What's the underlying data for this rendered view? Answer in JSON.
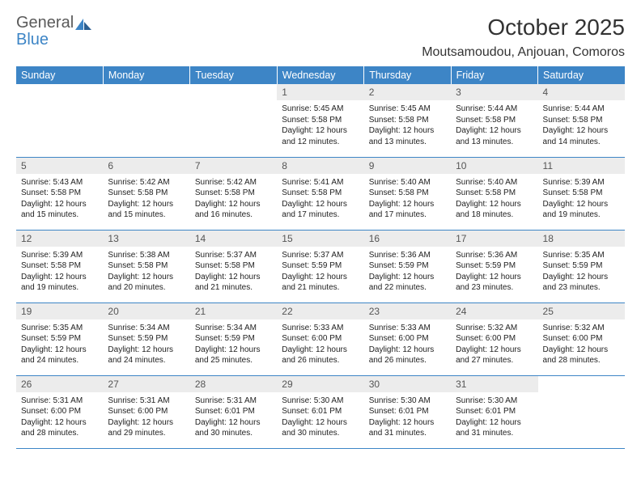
{
  "brand": {
    "name_part1": "General",
    "name_part2": "Blue",
    "color_gray": "#5a5a5a",
    "color_blue": "#3d85c6"
  },
  "title": "October 2025",
  "location": "Moutsamoudou, Anjouan, Comoros",
  "header_bg": "#3d85c6",
  "header_fg": "#ffffff",
  "daynum_bg": "#ececec",
  "border_color": "#3d85c6",
  "background_color": "#ffffff",
  "font_family": "Arial",
  "title_fontsize": 28,
  "location_fontsize": 16,
  "header_fontsize": 12.5,
  "daynum_fontsize": 12,
  "detail_fontsize": 10,
  "day_headers": [
    "Sunday",
    "Monday",
    "Tuesday",
    "Wednesday",
    "Thursday",
    "Friday",
    "Saturday"
  ],
  "weeks": [
    [
      null,
      null,
      null,
      {
        "n": "1",
        "sunrise": "5:45 AM",
        "sunset": "5:58 PM",
        "daylight": "12 hours and 12 minutes."
      },
      {
        "n": "2",
        "sunrise": "5:45 AM",
        "sunset": "5:58 PM",
        "daylight": "12 hours and 13 minutes."
      },
      {
        "n": "3",
        "sunrise": "5:44 AM",
        "sunset": "5:58 PM",
        "daylight": "12 hours and 13 minutes."
      },
      {
        "n": "4",
        "sunrise": "5:44 AM",
        "sunset": "5:58 PM",
        "daylight": "12 hours and 14 minutes."
      }
    ],
    [
      {
        "n": "5",
        "sunrise": "5:43 AM",
        "sunset": "5:58 PM",
        "daylight": "12 hours and 15 minutes."
      },
      {
        "n": "6",
        "sunrise": "5:42 AM",
        "sunset": "5:58 PM",
        "daylight": "12 hours and 15 minutes."
      },
      {
        "n": "7",
        "sunrise": "5:42 AM",
        "sunset": "5:58 PM",
        "daylight": "12 hours and 16 minutes."
      },
      {
        "n": "8",
        "sunrise": "5:41 AM",
        "sunset": "5:58 PM",
        "daylight": "12 hours and 17 minutes."
      },
      {
        "n": "9",
        "sunrise": "5:40 AM",
        "sunset": "5:58 PM",
        "daylight": "12 hours and 17 minutes."
      },
      {
        "n": "10",
        "sunrise": "5:40 AM",
        "sunset": "5:58 PM",
        "daylight": "12 hours and 18 minutes."
      },
      {
        "n": "11",
        "sunrise": "5:39 AM",
        "sunset": "5:58 PM",
        "daylight": "12 hours and 19 minutes."
      }
    ],
    [
      {
        "n": "12",
        "sunrise": "5:39 AM",
        "sunset": "5:58 PM",
        "daylight": "12 hours and 19 minutes."
      },
      {
        "n": "13",
        "sunrise": "5:38 AM",
        "sunset": "5:58 PM",
        "daylight": "12 hours and 20 minutes."
      },
      {
        "n": "14",
        "sunrise": "5:37 AM",
        "sunset": "5:58 PM",
        "daylight": "12 hours and 21 minutes."
      },
      {
        "n": "15",
        "sunrise": "5:37 AM",
        "sunset": "5:59 PM",
        "daylight": "12 hours and 21 minutes."
      },
      {
        "n": "16",
        "sunrise": "5:36 AM",
        "sunset": "5:59 PM",
        "daylight": "12 hours and 22 minutes."
      },
      {
        "n": "17",
        "sunrise": "5:36 AM",
        "sunset": "5:59 PM",
        "daylight": "12 hours and 23 minutes."
      },
      {
        "n": "18",
        "sunrise": "5:35 AM",
        "sunset": "5:59 PM",
        "daylight": "12 hours and 23 minutes."
      }
    ],
    [
      {
        "n": "19",
        "sunrise": "5:35 AM",
        "sunset": "5:59 PM",
        "daylight": "12 hours and 24 minutes."
      },
      {
        "n": "20",
        "sunrise": "5:34 AM",
        "sunset": "5:59 PM",
        "daylight": "12 hours and 24 minutes."
      },
      {
        "n": "21",
        "sunrise": "5:34 AM",
        "sunset": "5:59 PM",
        "daylight": "12 hours and 25 minutes."
      },
      {
        "n": "22",
        "sunrise": "5:33 AM",
        "sunset": "6:00 PM",
        "daylight": "12 hours and 26 minutes."
      },
      {
        "n": "23",
        "sunrise": "5:33 AM",
        "sunset": "6:00 PM",
        "daylight": "12 hours and 26 minutes."
      },
      {
        "n": "24",
        "sunrise": "5:32 AM",
        "sunset": "6:00 PM",
        "daylight": "12 hours and 27 minutes."
      },
      {
        "n": "25",
        "sunrise": "5:32 AM",
        "sunset": "6:00 PM",
        "daylight": "12 hours and 28 minutes."
      }
    ],
    [
      {
        "n": "26",
        "sunrise": "5:31 AM",
        "sunset": "6:00 PM",
        "daylight": "12 hours and 28 minutes."
      },
      {
        "n": "27",
        "sunrise": "5:31 AM",
        "sunset": "6:00 PM",
        "daylight": "12 hours and 29 minutes."
      },
      {
        "n": "28",
        "sunrise": "5:31 AM",
        "sunset": "6:01 PM",
        "daylight": "12 hours and 30 minutes."
      },
      {
        "n": "29",
        "sunrise": "5:30 AM",
        "sunset": "6:01 PM",
        "daylight": "12 hours and 30 minutes."
      },
      {
        "n": "30",
        "sunrise": "5:30 AM",
        "sunset": "6:01 PM",
        "daylight": "12 hours and 31 minutes."
      },
      {
        "n": "31",
        "sunrise": "5:30 AM",
        "sunset": "6:01 PM",
        "daylight": "12 hours and 31 minutes."
      },
      null
    ]
  ],
  "labels": {
    "sunrise": "Sunrise:",
    "sunset": "Sunset:",
    "daylight": "Daylight:"
  }
}
